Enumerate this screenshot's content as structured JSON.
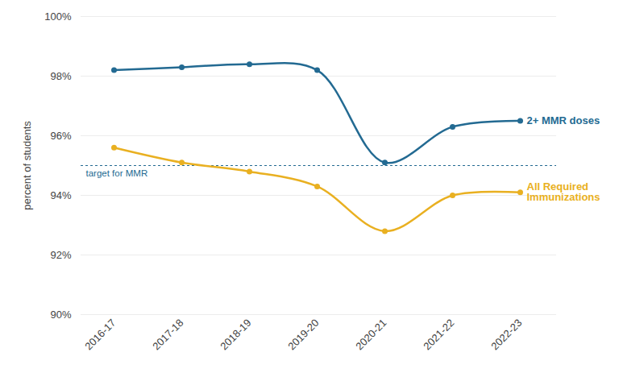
{
  "chart_data": {
    "type": "line",
    "categories": [
      "2016-17",
      "2017-18",
      "2018-19",
      "2019-20",
      "2020-21",
      "2021-22",
      "2022-23"
    ],
    "series": [
      {
        "name": "2+ MMR doses",
        "color": "#236a92",
        "marker": "circle",
        "values": [
          98.2,
          98.3,
          98.4,
          98.2,
          95.1,
          96.3,
          96.5
        ]
      },
      {
        "name": "All Required Immunizations",
        "color": "#e9b021",
        "marker": "circle",
        "values": [
          95.6,
          95.1,
          94.8,
          94.3,
          92.8,
          94.0,
          94.1
        ]
      }
    ],
    "y_label": "percent of students",
    "ylim": [
      90,
      100
    ],
    "yticks": [
      {
        "value": 90,
        "label": "90%"
      },
      {
        "value": 92,
        "label": "92%"
      },
      {
        "value": 94,
        "label": "94%"
      },
      {
        "value": 96,
        "label": "96%"
      },
      {
        "value": 98,
        "label": "98%"
      },
      {
        "value": 100,
        "label": "100%"
      }
    ],
    "grid": true,
    "reference_lines": [
      {
        "value": 95,
        "label": "target for MMR"
      }
    ]
  }
}
